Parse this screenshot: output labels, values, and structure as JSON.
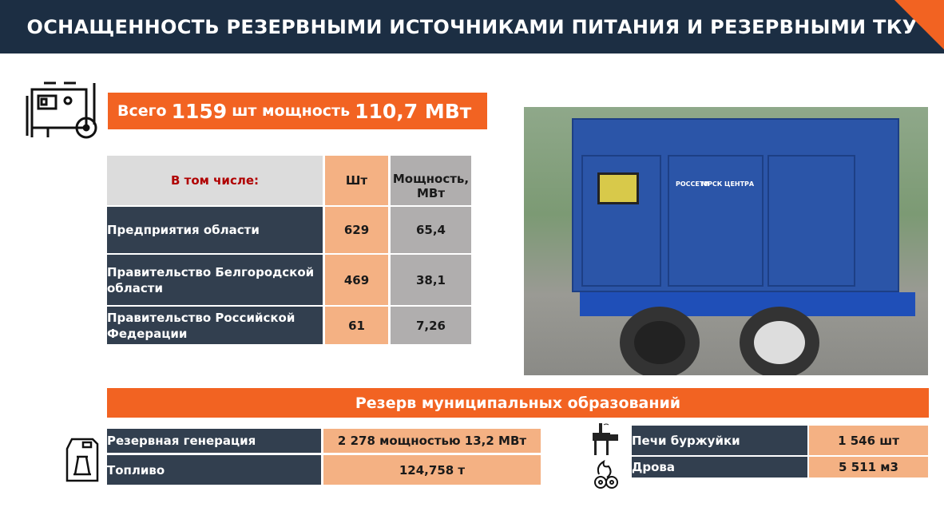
{
  "title": "ОСНАЩЕННОСТЬ РЕЗЕРВНЫМИ ИСТОЧНИКАМИ ПИТАНИЯ И РЕЗЕРВНЫМИ ТКУ",
  "total": {
    "prefix": "Всего",
    "count": "1159",
    "mid": "шт мощность",
    "power": "110,7 МВт"
  },
  "table": {
    "headers": [
      "В том числе:",
      "Шт",
      "Мощность, МВт"
    ],
    "rows": [
      {
        "label": "Предприятия области",
        "count": "629",
        "power": "65,4"
      },
      {
        "label": "Правительство Белгородской области",
        "count": "469",
        "power": "38,1"
      },
      {
        "label": "Правительство Российской Федерации",
        "count": "61",
        "power": "7,26"
      }
    ]
  },
  "photo": {
    "logo1": "РОССЕТИ",
    "logo2": "МРСК ЦЕНТРА"
  },
  "reserve": {
    "title": "Резерв муниципальных образований",
    "left": [
      {
        "label": "Резервная генерация",
        "value": "2 278 мощностью 13,2 МВт"
      },
      {
        "label": "Топливо",
        "value": "124,758 т"
      }
    ],
    "right": [
      {
        "label": "Печи буржуйки",
        "value": "1 546 шт"
      },
      {
        "label": "Дрова",
        "value": "5 511 м3"
      }
    ]
  },
  "colors": {
    "navy": "#1c2e43",
    "orange": "#f26322",
    "peach": "#f4b183",
    "dark": "#323f4f"
  }
}
